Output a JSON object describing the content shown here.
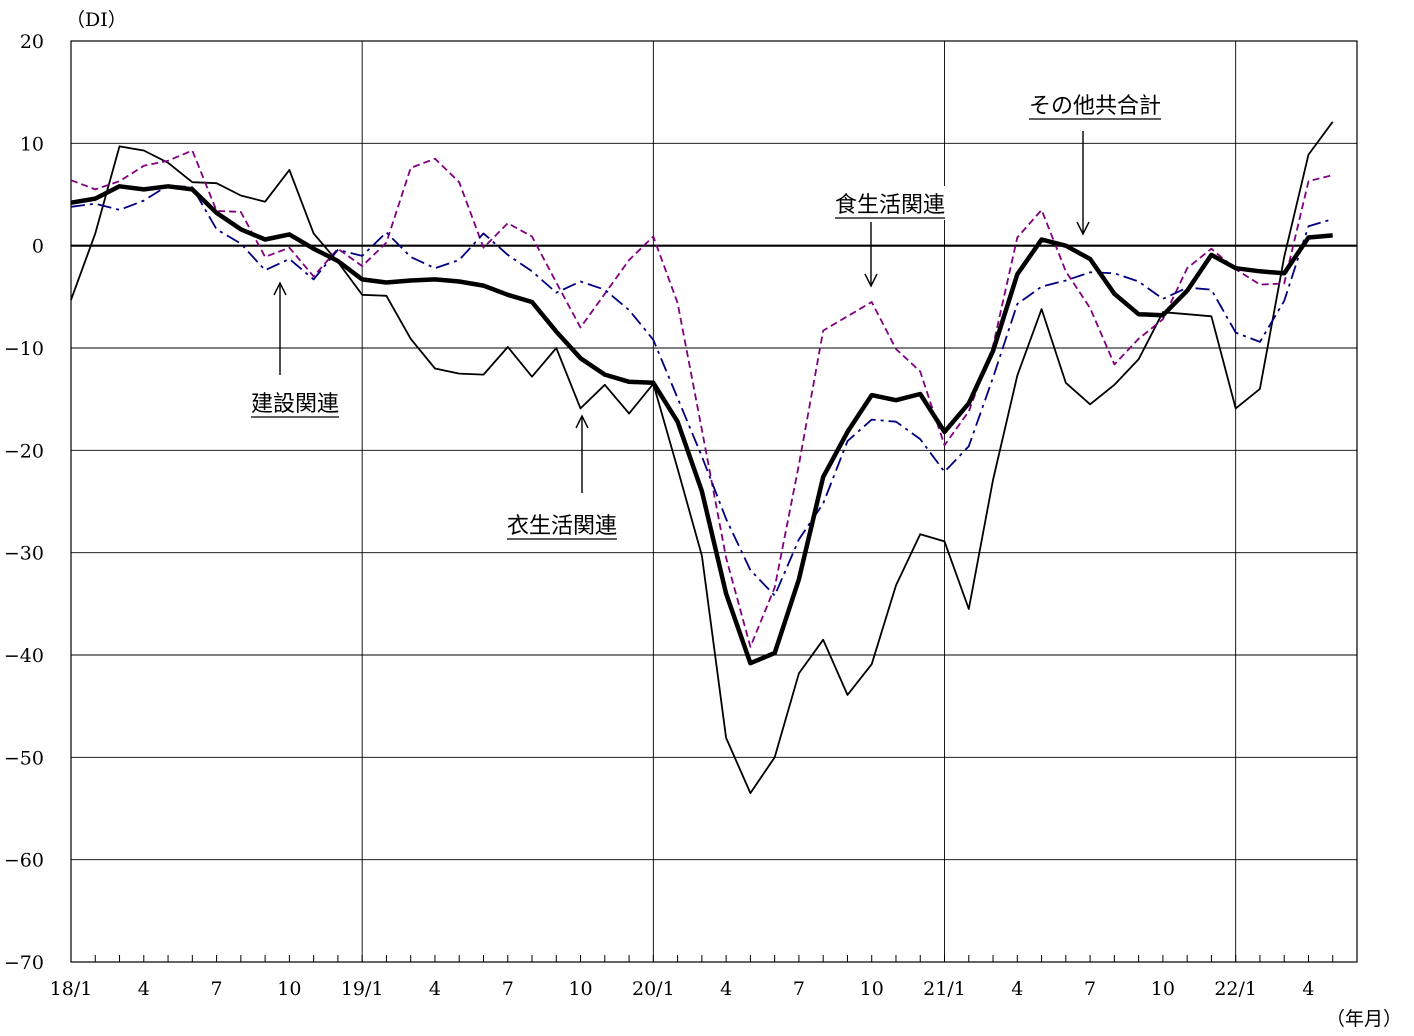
{
  "chart_data": {
    "type": "line",
    "y_unit_label": "（DI）",
    "x_unit_label": "（年月）",
    "ylim": [
      -70,
      20
    ],
    "yticks": [
      20,
      10,
      0,
      -10,
      -20,
      -30,
      -40,
      -50,
      -60,
      -70
    ],
    "x": [
      "2018-01",
      "2018-02",
      "2018-03",
      "2018-04",
      "2018-05",
      "2018-06",
      "2018-07",
      "2018-08",
      "2018-09",
      "2018-10",
      "2018-11",
      "2018-12",
      "2019-01",
      "2019-02",
      "2019-03",
      "2019-04",
      "2019-05",
      "2019-06",
      "2019-07",
      "2019-08",
      "2019-09",
      "2019-10",
      "2019-11",
      "2019-12",
      "2020-01",
      "2020-02",
      "2020-03",
      "2020-04",
      "2020-05",
      "2020-06",
      "2020-07",
      "2020-08",
      "2020-09",
      "2020-10",
      "2020-11",
      "2020-12",
      "2021-01",
      "2021-02",
      "2021-03",
      "2021-04",
      "2021-05",
      "2021-06",
      "2021-07",
      "2021-08",
      "2021-09",
      "2021-10",
      "2021-11",
      "2021-12",
      "2022-01",
      "2022-02",
      "2022-03",
      "2022-04",
      "2022-05"
    ],
    "xtick_labels": [
      {
        "index": 0,
        "label": "18/1"
      },
      {
        "index": 3,
        "label": "4"
      },
      {
        "index": 6,
        "label": "7"
      },
      {
        "index": 9,
        "label": "10"
      },
      {
        "index": 12,
        "label": "19/1"
      },
      {
        "index": 15,
        "label": "4"
      },
      {
        "index": 18,
        "label": "7"
      },
      {
        "index": 21,
        "label": "10"
      },
      {
        "index": 24,
        "label": "20/1"
      },
      {
        "index": 27,
        "label": "4"
      },
      {
        "index": 30,
        "label": "7"
      },
      {
        "index": 33,
        "label": "10"
      },
      {
        "index": 36,
        "label": "21/1"
      },
      {
        "index": 39,
        "label": "4"
      },
      {
        "index": 42,
        "label": "7"
      },
      {
        "index": 45,
        "label": "10"
      },
      {
        "index": 48,
        "label": "22/1"
      },
      {
        "index": 51,
        "label": "4"
      }
    ],
    "year_boundaries": [
      12,
      24,
      36,
      48
    ],
    "series": [
      {
        "name": "衣生活関連",
        "color": "#000000",
        "style": "solid",
        "weight": "thin",
        "values": [
          -5.3,
          1.2,
          9.7,
          9.3,
          8.1,
          6.2,
          6.1,
          4.9,
          4.3,
          7.4,
          1.2,
          -1.6,
          -4.8,
          -4.9,
          -9.1,
          -12.0,
          -12.5,
          -12.6,
          -9.9,
          -12.8,
          -10.0,
          -15.9,
          -13.6,
          -16.4,
          -13.5,
          -21.8,
          -30.3,
          -48.1,
          -53.5,
          -50.0,
          -41.8,
          -38.5,
          -43.9,
          -40.9,
          -33.2,
          -28.2,
          -28.9,
          -35.5,
          -22.9,
          -12.7,
          -6.2,
          -13.4,
          -15.5,
          -13.6,
          -11.1,
          -6.5,
          -6.7,
          -6.9,
          -15.9,
          -14.0,
          -1.1,
          8.9,
          12.1
        ]
      },
      {
        "name": "食生活関連",
        "color": "#800080",
        "style": "dashed",
        "weight": "thin",
        "values": [
          6.4,
          5.5,
          6.3,
          7.8,
          8.3,
          9.3,
          3.4,
          3.3,
          -1.1,
          -0.2,
          -3.0,
          -0.3,
          -2.0,
          0.3,
          7.6,
          8.5,
          6.2,
          -0.2,
          2.2,
          0.9,
          -3.6,
          -8.0,
          -4.7,
          -1.4,
          0.9,
          -5.6,
          -18.0,
          -30.5,
          -39.2,
          -33.4,
          -21.4,
          -8.3,
          -6.9,
          -5.5,
          -10.1,
          -12.3,
          -19.5,
          -16.2,
          -9.8,
          0.8,
          3.5,
          -2.5,
          -6.1,
          -11.6,
          -9.1,
          -7.2,
          -2.2,
          -0.3,
          -2.3,
          -3.8,
          -3.7,
          6.3,
          6.9
        ]
      },
      {
        "name": "建設関連",
        "color": "#000080",
        "style": "dashdot",
        "weight": "thin",
        "values": [
          3.8,
          4.1,
          3.5,
          4.4,
          5.9,
          5.7,
          1.6,
          0.2,
          -2.4,
          -1.3,
          -3.3,
          -0.4,
          -1.0,
          1.3,
          -1.1,
          -2.2,
          -1.4,
          1.2,
          -0.9,
          -2.5,
          -4.6,
          -3.5,
          -4.3,
          -6.3,
          -9.2,
          -14.9,
          -20.6,
          -26.7,
          -31.7,
          -34.2,
          -28.7,
          -25.2,
          -19.1,
          -17.0,
          -17.2,
          -18.9,
          -22.1,
          -19.6,
          -12.9,
          -5.7,
          -4.0,
          -3.4,
          -2.6,
          -2.7,
          -3.5,
          -5.2,
          -4.1,
          -4.3,
          -8.5,
          -9.4,
          -5.4,
          1.9,
          2.6
        ]
      },
      {
        "name": "その他共合計",
        "color": "#000000",
        "style": "solid",
        "weight": "thick",
        "values": [
          4.2,
          4.6,
          5.8,
          5.5,
          5.8,
          5.5,
          3.2,
          1.6,
          0.6,
          1.1,
          -0.3,
          -1.5,
          -3.3,
          -3.6,
          -3.4,
          -3.3,
          -3.5,
          -3.9,
          -4.8,
          -5.5,
          -8.4,
          -11.0,
          -12.6,
          -13.3,
          -13.4,
          -17.2,
          -24.0,
          -34.0,
          -40.8,
          -39.8,
          -32.6,
          -22.6,
          -18.2,
          -14.6,
          -15.1,
          -14.5,
          -18.2,
          -15.4,
          -10.3,
          -2.8,
          0.6,
          0.0,
          -1.3,
          -4.7,
          -6.7,
          -6.8,
          -4.4,
          -0.9,
          -2.2,
          -2.5,
          -2.7,
          0.8,
          1.0
        ]
      }
    ],
    "annotations": [
      {
        "text": "その他共合計",
        "series": "その他共合計",
        "arrow_at_index": 42
      },
      {
        "text": "食生活関連",
        "series": "食生活関連",
        "arrow_at_index": 33
      },
      {
        "text": "建設関連",
        "series": "建設関連",
        "arrow_at_index": 9
      },
      {
        "text": "衣生活関連",
        "series": "衣生活関連",
        "arrow_at_index": 21
      }
    ],
    "grid": true,
    "legend": "none (callout labels with arrows)"
  }
}
